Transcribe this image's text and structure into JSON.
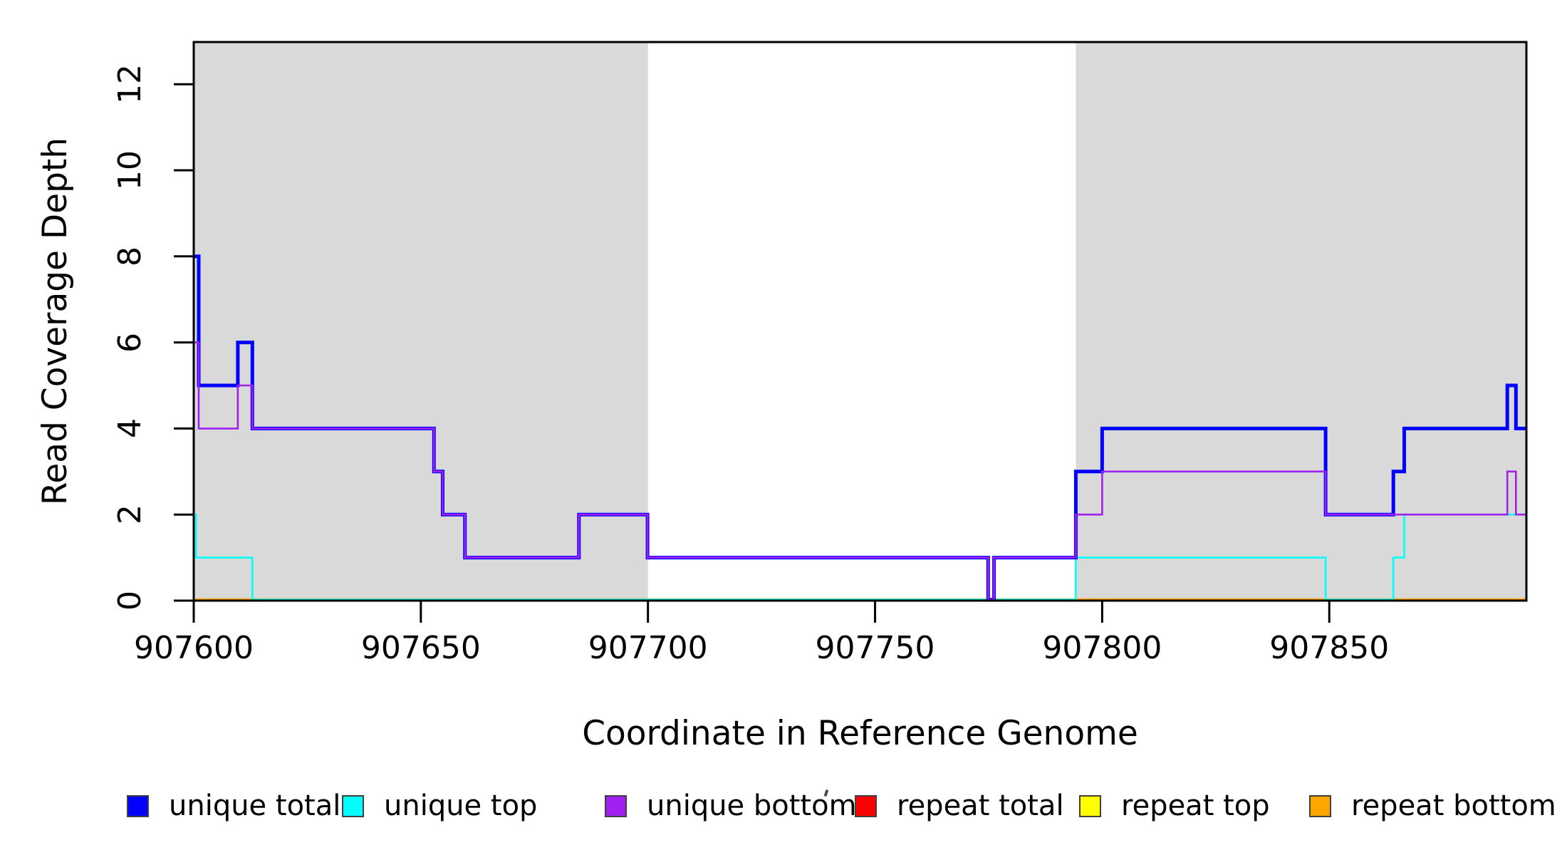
{
  "chart_data": {
    "type": "line",
    "step_style": "post",
    "title": "",
    "xlabel": "Coordinate in Reference Genome",
    "ylabel": "Read Coverage Depth",
    "xlim": [
      907600,
      907893.4
    ],
    "ylim": [
      0,
      12.98
    ],
    "x_ticks": [
      907600,
      907650,
      907700,
      907750,
      907800,
      907850
    ],
    "y_ticks": [
      0,
      2,
      4,
      6,
      8,
      10,
      12
    ],
    "grid": false,
    "legend_position": "bottom-horizontal",
    "shade_color": "#D9D9D9",
    "box_color": "#000000",
    "plot_background": "#FFFFFF",
    "shaded_regions": [
      {
        "from": 907600,
        "to": 907700
      },
      {
        "from": 907794.2,
        "to": 907893.4
      }
    ],
    "series": [
      {
        "name": "unique total",
        "color": "#0000FF",
        "line_width": 5,
        "points": [
          [
            907600,
            8
          ],
          [
            907601.1,
            5
          ],
          [
            907609.7,
            6
          ],
          [
            907612.9,
            4
          ],
          [
            907652.9,
            3
          ],
          [
            907654.8,
            2
          ],
          [
            907659.7,
            1
          ],
          [
            907684.8,
            2
          ],
          [
            907699.9,
            1
          ],
          [
            907774.9,
            0
          ],
          [
            907776.2,
            1
          ],
          [
            907794.2,
            3
          ],
          [
            907800,
            4
          ],
          [
            907849.2,
            2
          ],
          [
            907864.1,
            3
          ],
          [
            907866.5,
            4
          ],
          [
            907889.2,
            5
          ],
          [
            907891.1,
            4
          ]
        ]
      },
      {
        "name": "unique top",
        "color": "#00FFFF",
        "line_width": 2.6,
        "points": [
          [
            907600,
            2
          ],
          [
            907600.5,
            1
          ],
          [
            907612.9,
            0
          ],
          [
            907794.2,
            1
          ],
          [
            907849.2,
            0
          ],
          [
            907864.1,
            1
          ],
          [
            907866.5,
            2
          ]
        ]
      },
      {
        "name": "unique bottom",
        "color": "#A020F0",
        "line_width": 2.6,
        "points": [
          [
            907600,
            6
          ],
          [
            907601.1,
            4
          ],
          [
            907609.7,
            5
          ],
          [
            907612.9,
            4
          ],
          [
            907652.9,
            3
          ],
          [
            907654.8,
            2
          ],
          [
            907659.7,
            1
          ],
          [
            907684.8,
            2
          ],
          [
            907699.9,
            1
          ],
          [
            907774.9,
            0
          ],
          [
            907776.2,
            1
          ],
          [
            907794.2,
            2
          ],
          [
            907800,
            3
          ],
          [
            907849.2,
            2
          ],
          [
            907889.2,
            3
          ],
          [
            907891.1,
            2
          ]
        ]
      },
      {
        "name": "repeat total",
        "color": "#FF0000",
        "line_width": 2.6,
        "points": [
          [
            907600,
            0
          ]
        ]
      },
      {
        "name": "repeat top",
        "color": "#FFFF00",
        "line_width": 2.6,
        "points": [
          [
            907600,
            0
          ]
        ]
      },
      {
        "name": "repeat bottom",
        "color": "#FFA500",
        "line_width": 3.4,
        "points": [
          [
            907600,
            0
          ]
        ]
      }
    ],
    "draw_order": [
      "repeat total",
      "repeat top",
      "repeat bottom",
      "unique top",
      "unique total",
      "unique bottom"
    ],
    "legend": [
      {
        "label": "unique total",
        "color": "#0000FF"
      },
      {
        "label": "unique top",
        "color": "#00FFFF"
      },
      {
        "label": "unique bottom",
        "color": "#A020F0"
      },
      {
        "label": "repeat total",
        "color": "#FF0000"
      },
      {
        "label": "repeat top",
        "color": "#FFFF00"
      },
      {
        "label": "repeat bottom",
        "color": "#FFA500"
      }
    ]
  }
}
